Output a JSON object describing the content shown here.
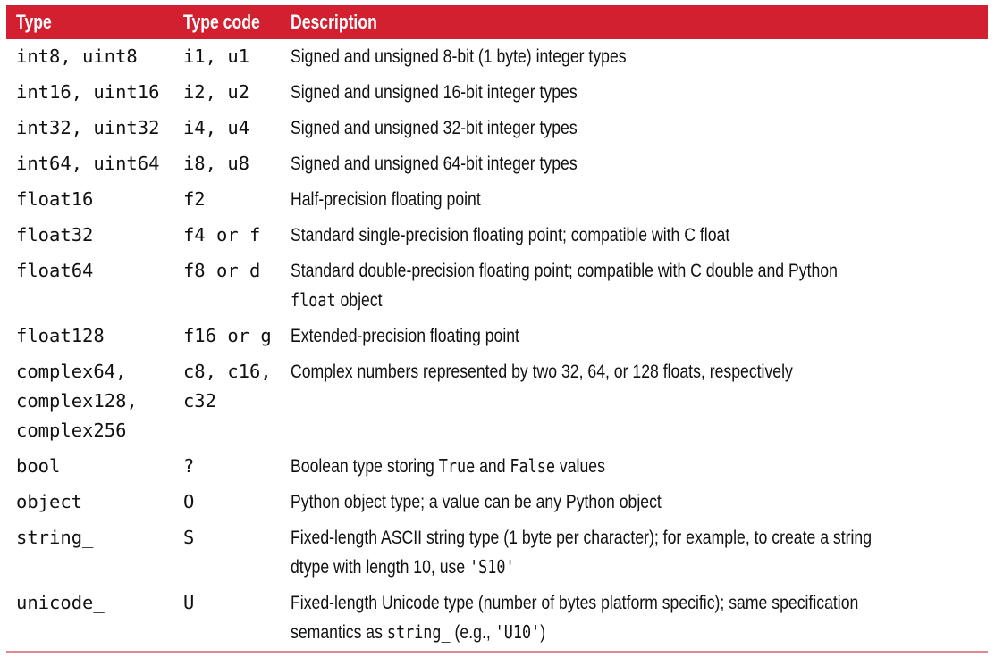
{
  "header": {
    "type": "Type",
    "code": "Type code",
    "description": "Description"
  },
  "rows": [
    {
      "type": "int8, uint8",
      "code": "i1, u1",
      "description": [
        {
          "text": "Signed and unsigned 8-bit (1 byte) integer types"
        }
      ]
    },
    {
      "type": "int16, uint16",
      "code": "i2, u2",
      "description": [
        {
          "text": "Signed and unsigned 16-bit integer types"
        }
      ]
    },
    {
      "type": "int32, uint32",
      "code": "i4, u4",
      "description": [
        {
          "text": "Signed and unsigned 32-bit integer types"
        }
      ]
    },
    {
      "type": "int64, uint64",
      "code": "i8, u8",
      "description": [
        {
          "text": "Signed and unsigned 64-bit integer types"
        }
      ]
    },
    {
      "type": "float16",
      "code": "f2",
      "description": [
        {
          "text": "Half-precision floating point"
        }
      ]
    },
    {
      "type": "float32",
      "code": "f4 or f",
      "description": [
        {
          "text": "Standard single-precision floating point; compatible with C float"
        }
      ]
    },
    {
      "type": "float64",
      "code": "f8 or d",
      "description": [
        {
          "text": "Standard double-precision floating point; compatible with C double and Python "
        },
        {
          "text": "float",
          "code": true
        },
        {
          "text": " object"
        }
      ]
    },
    {
      "type": "float128",
      "code": "f16 or g",
      "description": [
        {
          "text": "Extended-precision floating point"
        }
      ]
    },
    {
      "type": "complex64, complex128, complex256",
      "code": "c8, c16, c32",
      "description": [
        {
          "text": "Complex numbers represented by two 32, 64, or 128 floats, respectively"
        }
      ]
    },
    {
      "type": "bool",
      "code": "?",
      "description": [
        {
          "text": "Boolean type storing "
        },
        {
          "text": "True",
          "code": true
        },
        {
          "text": " and "
        },
        {
          "text": "False",
          "code": true
        },
        {
          "text": " values"
        }
      ]
    },
    {
      "type": "object",
      "code": "O",
      "description": [
        {
          "text": "Python object type; a value can be any Python object"
        }
      ]
    },
    {
      "type": "string_",
      "code": "S",
      "description": [
        {
          "text": "Fixed-length ASCII string type (1 byte per character); for example, to create a string dtype with length 10, use "
        },
        {
          "text": "'S10'",
          "code": true
        }
      ]
    },
    {
      "type": "unicode_",
      "code": "U",
      "description": [
        {
          "text": "Fixed-length Unicode type (number of bytes platform specific); same specification semantics as "
        },
        {
          "text": "string_",
          "code": true
        },
        {
          "text": " (e.g., "
        },
        {
          "text": "'U10'",
          "code": true
        },
        {
          "text": ")"
        }
      ]
    }
  ]
}
